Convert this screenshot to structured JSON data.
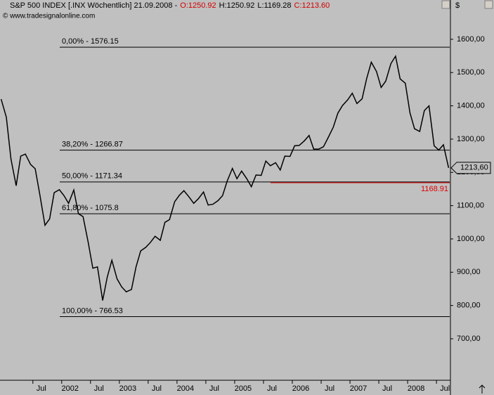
{
  "chart_data": {
    "type": "line",
    "title": "S&P 500 INDEX [.INX  Wöchentlich] 21.09.2008 -",
    "ohlc": [
      {
        "label": "O:1250.92",
        "color": "#d00000"
      },
      {
        "label": "H:1250.92",
        "color": "#000000"
      },
      {
        "label": "L:1169.28",
        "color": "#000000"
      },
      {
        "label": "C:1213.60",
        "color": "#d00000"
      }
    ],
    "copyright": "© www.tradesignalonline.com",
    "currency": "$",
    "x": [
      2000.95,
      2001.04,
      2001.12,
      2001.21,
      2001.29,
      2001.37,
      2001.46,
      2001.54,
      2001.62,
      2001.71,
      2001.79,
      2001.87,
      2001.96,
      2002.04,
      2002.12,
      2002.21,
      2002.29,
      2002.37,
      2002.46,
      2002.54,
      2002.62,
      2002.71,
      2002.79,
      2002.87,
      2002.96,
      2003.04,
      2003.12,
      2003.21,
      2003.29,
      2003.37,
      2003.46,
      2003.54,
      2003.62,
      2003.71,
      2003.79,
      2003.87,
      2003.96,
      2004.04,
      2004.12,
      2004.21,
      2004.29,
      2004.37,
      2004.46,
      2004.54,
      2004.62,
      2004.71,
      2004.79,
      2004.87,
      2004.96,
      2005.04,
      2005.12,
      2005.21,
      2005.29,
      2005.37,
      2005.46,
      2005.54,
      2005.62,
      2005.71,
      2005.79,
      2005.87,
      2005.96,
      2006.04,
      2006.12,
      2006.21,
      2006.29,
      2006.37,
      2006.46,
      2006.54,
      2006.62,
      2006.71,
      2006.79,
      2006.87,
      2006.96,
      2007.04,
      2007.12,
      2007.21,
      2007.29,
      2007.37,
      2007.46,
      2007.54,
      2007.62,
      2007.71,
      2007.79,
      2007.87,
      2007.96,
      2008.04,
      2008.12,
      2008.21,
      2008.29,
      2008.37,
      2008.46,
      2008.54,
      2008.62,
      2008.71
    ],
    "series": [
      {
        "name": "S&P 500",
        "color": "#000000",
        "values": [
          1420,
          1366,
          1240,
          1160,
          1249,
          1255,
          1224,
          1211,
          1134,
          1041,
          1060,
          1139,
          1148,
          1130,
          1107,
          1147,
          1076,
          1067,
          990,
          912,
          916,
          815,
          885,
          936,
          880,
          856,
          841,
          848,
          916,
          964,
          975,
          990,
          1008,
          996,
          1050,
          1058,
          1112,
          1131,
          1145,
          1126,
          1107,
          1121,
          1141,
          1102,
          1104,
          1115,
          1130,
          1174,
          1212,
          1181,
          1204,
          1181,
          1157,
          1192,
          1191,
          1234,
          1220,
          1229,
          1207,
          1249,
          1248,
          1280,
          1281,
          1295,
          1311,
          1270,
          1270,
          1277,
          1304,
          1336,
          1378,
          1401,
          1418,
          1438,
          1407,
          1421,
          1482,
          1531,
          1503,
          1455,
          1474,
          1527,
          1549,
          1481,
          1468,
          1379,
          1331,
          1323,
          1386,
          1400,
          1280,
          1267,
          1283,
          1213.6
        ]
      }
    ],
    "xlim": [
      2000.93,
      2008.73
    ],
    "xticks": [
      {
        "value": 2001.5,
        "label": "Jul"
      },
      {
        "value": 2002,
        "label": "2002"
      },
      {
        "value": 2002.5,
        "label": "Jul"
      },
      {
        "value": 2003,
        "label": "2003"
      },
      {
        "value": 2003.5,
        "label": "Jul"
      },
      {
        "value": 2004,
        "label": "2004"
      },
      {
        "value": 2004.5,
        "label": "Jul"
      },
      {
        "value": 2005,
        "label": "2005"
      },
      {
        "value": 2005.5,
        "label": "Jul"
      },
      {
        "value": 2006,
        "label": "2006"
      },
      {
        "value": 2006.5,
        "label": "Jul"
      },
      {
        "value": 2007,
        "label": "2007"
      },
      {
        "value": 2007.5,
        "label": "Jul"
      },
      {
        "value": 2008,
        "label": "2008"
      },
      {
        "value": 2008.5,
        "label": "Jul"
      }
    ],
    "ylim": [
      577.5,
      1718
    ],
    "yticks": [
      {
        "value": 700,
        "label": "700,00"
      },
      {
        "value": 800,
        "label": "800,00"
      },
      {
        "value": 900,
        "label": "900,00"
      },
      {
        "value": 1000,
        "label": "1000,00"
      },
      {
        "value": 1100,
        "label": "1100,00"
      },
      {
        "value": 1200,
        "label": "1200,00"
      },
      {
        "value": 1300,
        "label": "1300,00"
      },
      {
        "value": 1400,
        "label": "1400,00"
      },
      {
        "value": 1500,
        "label": "1500,00"
      },
      {
        "value": 1600,
        "label": "1600,00"
      }
    ],
    "levels": [
      {
        "value": 1576.15,
        "label": "0,00% - 1576.15"
      },
      {
        "value": 1266.87,
        "label": "38,20% - 1266.87"
      },
      {
        "value": 1171.34,
        "label": "50,00% - 1171.34"
      },
      {
        "value": 1075.8,
        "label": "61,80% - 1075.8"
      },
      {
        "value": 766.53,
        "label": "100,00% - 766.53"
      }
    ],
    "support": {
      "value": 1168.91,
      "label": "1168.91",
      "color": "#e00000"
    },
    "last": {
      "value": 1213.6,
      "label": "1213,60"
    }
  }
}
